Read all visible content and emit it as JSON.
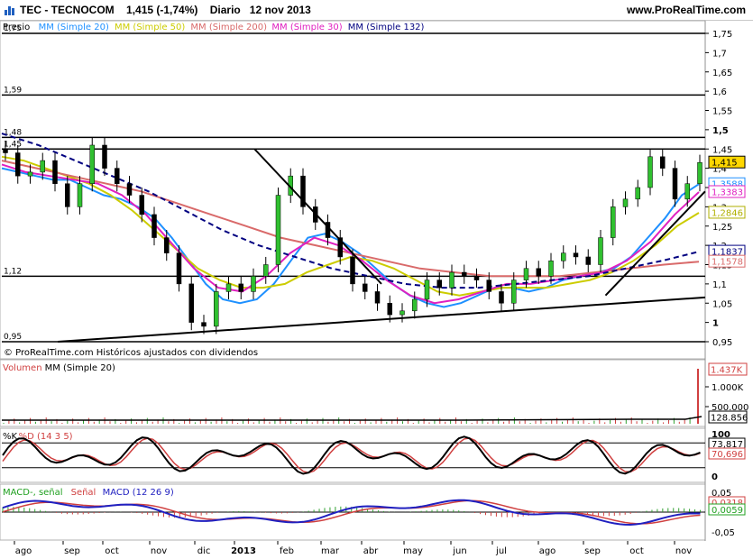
{
  "header": {
    "symbol": "TEC - TECNOCOM",
    "quote": "1,415 (-1,74%)",
    "period": "Diario",
    "date": "12 nov 2013",
    "site": "www.ProRealTime.com"
  },
  "legends": {
    "price": [
      {
        "text": "Precio",
        "color": "#000000"
      },
      {
        "text": "MM (Simple 20)",
        "color": "#1e90ff"
      },
      {
        "text": "MM (Simple 50)",
        "color": "#cccc00"
      },
      {
        "text": "MM (Simple 200)",
        "color": "#d96a6a"
      },
      {
        "text": "MM (Simple 30)",
        "color": "#e020c0"
      },
      {
        "text": "MM (Simple 132)",
        "color": "#000080"
      }
    ],
    "copyright": "© ProRealTime.com  Históricos ajustados con dividendos",
    "volume": [
      {
        "text": "Volumen",
        "color": "#d04040"
      },
      {
        "text": "MM (Simple 20)",
        "color": "#000000"
      }
    ],
    "stoch": [
      {
        "text": "%K",
        "color": "#000000"
      },
      {
        "text": "%D (14 3 5)",
        "color": "#d04040"
      }
    ],
    "macd": [
      {
        "text": "MACD-, señal",
        "color": "#20a020"
      },
      {
        "text": "Señal",
        "color": "#d04040"
      },
      {
        "text": "MACD (12 26 9)",
        "color": "#2020c0"
      }
    ]
  },
  "x_axis": {
    "labels": [
      "ago",
      "sep",
      "oct",
      "nov",
      "dic",
      "2013",
      "feb",
      "mar",
      "abr",
      "may",
      "jun",
      "jul",
      "ago",
      "sep",
      "oct",
      "nov"
    ]
  },
  "price_axis": {
    "ticks": [
      "1,75",
      "1,7",
      "1,65",
      "1,6",
      "1,55",
      "1,5",
      "1,45",
      "1,4",
      "1,35",
      "1,3",
      "1,25",
      "1,2",
      "1,15",
      "1,1",
      "1,05",
      "1",
      "0,95"
    ],
    "level_labels": [
      "1,75",
      "1,59",
      "1,48",
      "1,45",
      "1,12",
      "0,95"
    ],
    "badges": [
      {
        "text": "1,415",
        "value": 1.415,
        "bg": "#ffd700",
        "fg": "#000000"
      },
      {
        "text": "1,3588",
        "value": 1.3588,
        "bg": "#ffffff",
        "fg": "#1e90ff"
      },
      {
        "text": "1,3383",
        "value": 1.3383,
        "bg": "#ffffff",
        "fg": "#e020c0"
      },
      {
        "text": "1,2846",
        "value": 1.2846,
        "bg": "#ffffff",
        "fg": "#b0b000"
      },
      {
        "text": "1,1837",
        "value": 1.1837,
        "bg": "#ffffff",
        "fg": "#000080"
      },
      {
        "text": "1,1578",
        "value": 1.1578,
        "bg": "#ffffff",
        "fg": "#d96a6a"
      }
    ]
  },
  "volume_axis": {
    "ticks": [
      "1.000K",
      "500.000"
    ],
    "badges": [
      {
        "text": "1.437K",
        "bg": "#ffffff",
        "fg": "#d04040"
      },
      {
        "text": "128.856",
        "bg": "#ffffff",
        "fg": "#000000"
      }
    ]
  },
  "stoch_axis": {
    "ticks": [
      "100",
      "0"
    ],
    "badges": [
      {
        "text": "73,817",
        "bg": "#ffffff",
        "fg": "#000000"
      },
      {
        "text": "70,696",
        "bg": "#ffffff",
        "fg": "#d04040"
      }
    ]
  },
  "macd_axis": {
    "ticks": [
      "0,05",
      "-0,05"
    ],
    "badges": [
      {
        "text": "0,0318",
        "bg": "#ffffff",
        "fg": "#d04040"
      },
      {
        "text": "0,0059",
        "bg": "#ffffff",
        "fg": "#20a020"
      }
    ]
  },
  "chart_data": {
    "type": "line",
    "title": "TEC - TECNOCOM",
    "xlabel": "",
    "ylabel": "",
    "ylim": [
      0.95,
      1.75
    ],
    "grid": false,
    "scale": "linear",
    "horizontal_levels": [
      1.75,
      1.59,
      1.48,
      1.45,
      1.12,
      0.95
    ],
    "series": [
      {
        "name": "Precio",
        "values": [
          1.44,
          1.38,
          1.39,
          1.42,
          1.36,
          1.3,
          1.36,
          1.46,
          1.4,
          1.36,
          1.33,
          1.28,
          1.22,
          1.18,
          1.1,
          1.0,
          0.99,
          1.08,
          1.1,
          1.08,
          1.12,
          1.15,
          1.33,
          1.38,
          1.3,
          1.26,
          1.22,
          1.17,
          1.1,
          1.08,
          1.05,
          1.02,
          1.03,
          1.06,
          1.11,
          1.09,
          1.13,
          1.12,
          1.11,
          1.08,
          1.05,
          1.11,
          1.14,
          1.12,
          1.16,
          1.18,
          1.17,
          1.15,
          1.22,
          1.3,
          1.32,
          1.35,
          1.43,
          1.4,
          1.32,
          1.36,
          1.415
        ]
      },
      {
        "name": "MM (Simple 20)",
        "values": [
          1.4,
          1.39,
          1.38,
          1.37,
          1.37,
          1.35,
          1.33,
          1.32,
          1.3,
          1.27,
          1.22,
          1.16,
          1.1,
          1.06,
          1.05,
          1.06,
          1.1,
          1.16,
          1.22,
          1.23,
          1.21,
          1.18,
          1.14,
          1.1,
          1.07,
          1.05,
          1.04,
          1.05,
          1.07,
          1.09,
          1.09,
          1.08,
          1.09,
          1.11,
          1.12,
          1.13,
          1.14,
          1.17,
          1.22,
          1.27,
          1.33,
          1.3588
        ]
      },
      {
        "name": "MM (Simple 50)",
        "values": [
          1.43,
          1.42,
          1.4,
          1.38,
          1.36,
          1.33,
          1.29,
          1.24,
          1.19,
          1.14,
          1.11,
          1.09,
          1.09,
          1.1,
          1.13,
          1.15,
          1.17,
          1.16,
          1.14,
          1.11,
          1.08,
          1.07,
          1.08,
          1.09,
          1.09,
          1.09,
          1.1,
          1.11,
          1.13,
          1.16,
          1.2,
          1.25,
          1.2846
        ]
      },
      {
        "name": "MM (Simple 200)",
        "values": [
          1.42,
          1.4,
          1.38,
          1.36,
          1.34,
          1.31,
          1.28,
          1.25,
          1.22,
          1.2,
          1.18,
          1.16,
          1.14,
          1.13,
          1.12,
          1.12,
          1.12,
          1.13,
          1.14,
          1.15,
          1.1578
        ]
      },
      {
        "name": "MM (Simple 30)",
        "values": [
          1.41,
          1.39,
          1.38,
          1.37,
          1.36,
          1.33,
          1.28,
          1.21,
          1.14,
          1.09,
          1.08,
          1.12,
          1.18,
          1.22,
          1.2,
          1.16,
          1.11,
          1.07,
          1.05,
          1.06,
          1.08,
          1.1,
          1.1,
          1.11,
          1.12,
          1.13,
          1.16,
          1.21,
          1.28,
          1.3383
        ]
      },
      {
        "name": "MM (Simple 132)",
        "values": [
          1.49,
          1.46,
          1.42,
          1.38,
          1.34,
          1.29,
          1.24,
          1.2,
          1.17,
          1.14,
          1.12,
          1.1,
          1.09,
          1.09,
          1.1,
          1.11,
          1.12,
          1.14,
          1.16,
          1.1837
        ]
      }
    ],
    "panels": [
      {
        "name": "Volumen",
        "last": "1.437K",
        "ma_last": "128.856"
      },
      {
        "name": "%K %D (14 3 5)",
        "k_last": 73.817,
        "d_last": 70.696
      },
      {
        "name": "MACD (12 26 9)",
        "macd_last": 0.0318,
        "signal_last": 0.0059
      }
    ]
  }
}
